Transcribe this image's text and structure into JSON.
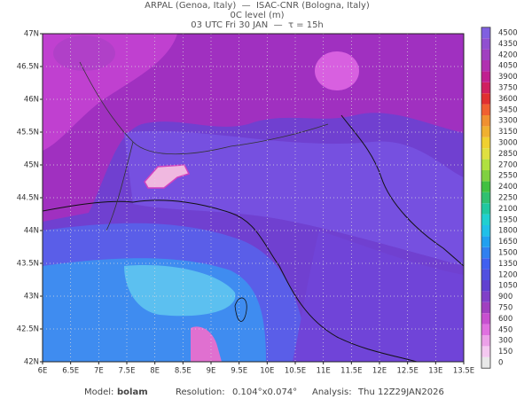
{
  "header": {
    "line1": "ARPAL (Genoa, Italy)  —  ISAC-CNR (Bologna, Italy)",
    "line2": "0C level (m)",
    "line3": "03 UTC Fri 30 JAN  —  τ = 15h"
  },
  "map": {
    "lon_labels": [
      "6E",
      "6.5E",
      "7E",
      "7.5E",
      "8E",
      "8.5E",
      "9E",
      "9.5E",
      "10E",
      "10.5E",
      "11E",
      "11.5E",
      "12E",
      "12.5E",
      "13E",
      "13.5E"
    ],
    "lat_labels": [
      "42N",
      "42.5N",
      "43N",
      "43.5N",
      "44N",
      "44.5N",
      "45N",
      "45.5N",
      "46N",
      "46.5N",
      "47N"
    ]
  },
  "colorbar": {
    "levels": [
      0,
      150,
      300,
      450,
      600,
      750,
      900,
      1050,
      1200,
      1350,
      1500,
      1650,
      1800,
      1950,
      2100,
      2250,
      2400,
      2550,
      2700,
      2850,
      3000,
      3150,
      3300,
      3450,
      3600,
      3750,
      3900,
      4050,
      4200,
      4350,
      4500
    ],
    "colors": [
      "#e8e8e8",
      "#f4c8f0",
      "#eca0e8",
      "#e070e0",
      "#c850d0",
      "#a040c0",
      "#8040c8",
      "#6040d0",
      "#5050e0",
      "#4060f0",
      "#3080f0",
      "#20a0f0",
      "#20c0e8",
      "#20d0d0",
      "#20c8a0",
      "#30c070",
      "#40c040",
      "#80d040",
      "#b0e040",
      "#e0e040",
      "#f0d030",
      "#f0b030",
      "#f09030",
      "#f06030",
      "#e03030",
      "#d02060",
      "#c02090",
      "#b030b0",
      "#a040c0",
      "#9050d0",
      "#8060e0"
    ]
  },
  "footer": {
    "model_label": "Model:",
    "model": "bolam",
    "resolution_label": "Resolution:",
    "resolution": "0.104°x0.074°",
    "analysis_label": "Analysis:",
    "analysis": "Thu 12Z29JAN2026"
  }
}
